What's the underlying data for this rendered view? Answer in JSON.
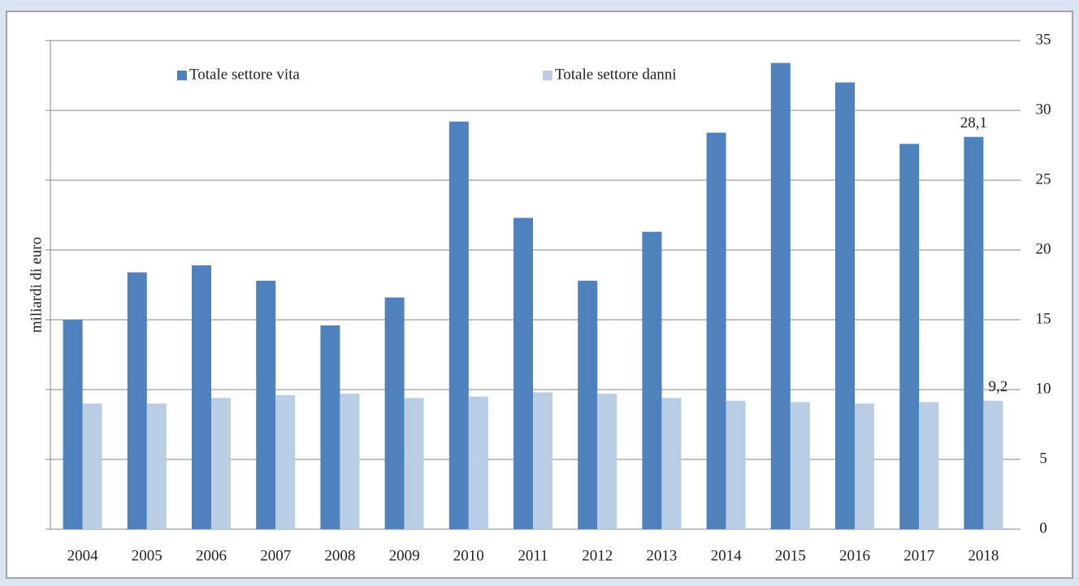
{
  "chart_data": {
    "type": "bar",
    "y_label": "miliardi di euro",
    "categories": [
      "2004",
      "2005",
      "2006",
      "2007",
      "2008",
      "2009",
      "2010",
      "2011",
      "2012",
      "2013",
      "2014",
      "2015",
      "2016",
      "2017",
      "2018"
    ],
    "series": [
      {
        "name": "Totale settore vita",
        "color": "#4f81bd",
        "values": [
          15.0,
          18.4,
          18.9,
          17.8,
          14.6,
          16.6,
          29.2,
          22.3,
          17.8,
          21.3,
          28.4,
          33.4,
          32.0,
          27.6,
          28.1
        ],
        "value_labels": [
          null,
          null,
          null,
          null,
          null,
          null,
          null,
          null,
          null,
          null,
          null,
          null,
          null,
          null,
          "28,1"
        ]
      },
      {
        "name": "Totale settore danni",
        "color": "#b9cde5",
        "values": [
          9.0,
          9.0,
          9.4,
          9.6,
          9.7,
          9.4,
          9.5,
          9.8,
          9.7,
          9.4,
          9.2,
          9.1,
          9.0,
          9.1,
          9.2
        ],
        "value_labels": [
          null,
          null,
          null,
          null,
          null,
          null,
          null,
          null,
          null,
          null,
          null,
          null,
          null,
          null,
          "9,2"
        ]
      }
    ],
    "ylim": [
      0,
      35
    ],
    "yticks": [
      0,
      5,
      10,
      15,
      20,
      25,
      30,
      35
    ],
    "y_axis_side": "right",
    "grid": true,
    "legend": "top"
  }
}
